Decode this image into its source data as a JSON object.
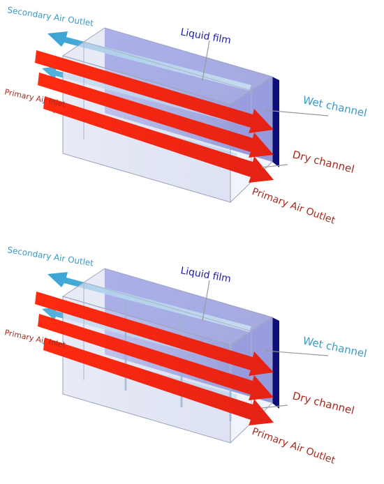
{
  "colors": {
    "dark_blue": "#1a1aa8",
    "wet_blue": "#3a9ac4",
    "red_label": "#a8281e",
    "primary_arrow": "#ee2a1a",
    "secondary_arrow": "#37a7d6",
    "film_blue": "#2a2acc"
  },
  "diagrams": [
    {
      "secondary_air_outlet": "Secondary Air Outlet",
      "liquid_film": "Liquid film",
      "wet_channel": "Wet channel",
      "primary_air_inlet": "Primary Air Inlet",
      "dry_channel": "Dry channel",
      "primary_air_outlet": "Primary Air Outlet"
    },
    {
      "secondary_air_outlet": "Secondary Air Outlet",
      "liquid_film": "Liquid film",
      "wet_channel": "Wet channel",
      "primary_air_inlet": "Primary Air Inlet",
      "dry_channel": "Dry channel",
      "primary_air_outlet": "Primary Air Outlet"
    }
  ]
}
